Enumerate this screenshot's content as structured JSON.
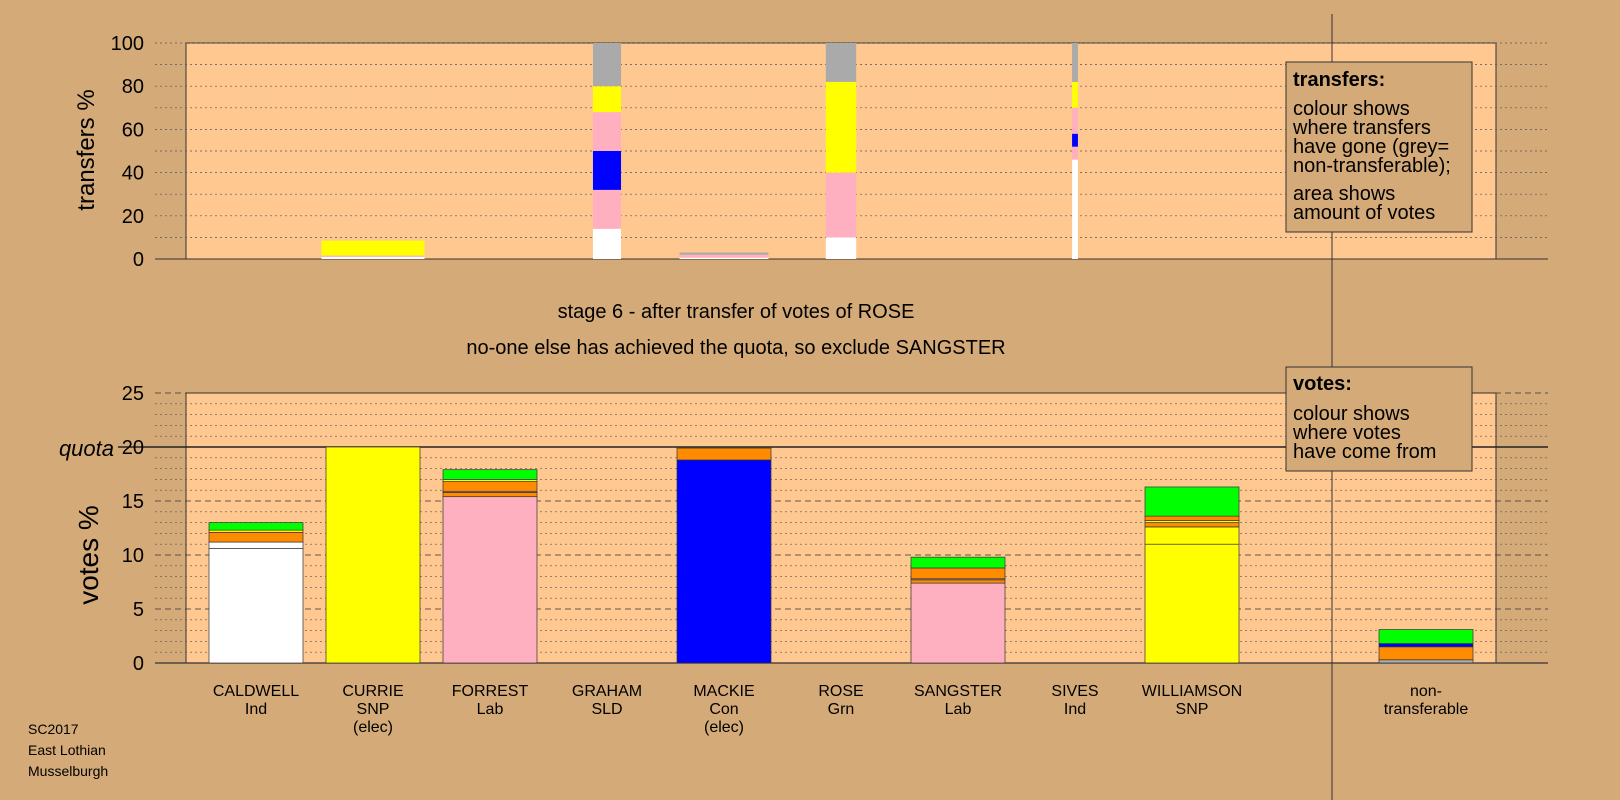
{
  "colors": {
    "page_bg": "#d4aa78",
    "plot_bg": "#ffc890",
    "non_transferable_shade": "#c9a070",
    "Ind_white": "#ffffff",
    "SNP": "#ffff00",
    "Lab": "#ffb0c0",
    "Con": "#0000ff",
    "Grn": "#00ff00",
    "SLD": "#ff8c00",
    "grey": "#aaaaaa"
  },
  "chart_data": [
    {
      "type": "bar",
      "stacked": true,
      "title": "",
      "ylabel": "transfers %",
      "ylim": [
        0,
        100
      ],
      "yticks": [
        0,
        20,
        40,
        60,
        80,
        100
      ],
      "grid": "dotted every 10",
      "categories": [
        "CALDWELL",
        "CURRIE",
        "FORREST",
        "GRAHAM",
        "MACKIE",
        "ROSE",
        "SANGSTER",
        "SIVES",
        "WILLIAMSON",
        "non-transferable"
      ],
      "note": "",
      "bars": [
        {
          "candidate": "CURRIE",
          "width_fraction": 0.88,
          "segments": [
            {
              "color": "#ffffff",
              "from": 0,
              "to": 1
            },
            {
              "color": "#ffb0c0",
              "from": 1,
              "to": 1.6
            },
            {
              "color": "#ffff00",
              "from": 1.6,
              "to": 8.5
            }
          ]
        },
        {
          "candidate": "GRAHAM",
          "width_fraction": 0.24,
          "segments": [
            {
              "color": "#ffffff",
              "from": 0,
              "to": 14
            },
            {
              "color": "#ffb0c0",
              "from": 14,
              "to": 32
            },
            {
              "color": "#0000ff",
              "from": 32,
              "to": 50
            },
            {
              "color": "#ffb0c0",
              "from": 50,
              "to": 68
            },
            {
              "color": "#ffff00",
              "from": 68,
              "to": 80
            },
            {
              "color": "#aaaaaa",
              "from": 80,
              "to": 100
            }
          ]
        },
        {
          "candidate": "MACKIE",
          "width_fraction": 0.76,
          "segments": [
            {
              "color": "#ffffff",
              "from": 0,
              "to": 0.6
            },
            {
              "color": "#ffb0c0",
              "from": 0.6,
              "to": 2
            },
            {
              "color": "#aaaaaa",
              "from": 2,
              "to": 3
            }
          ]
        },
        {
          "candidate": "ROSE",
          "width_fraction": 0.26,
          "segments": [
            {
              "color": "#ffffff",
              "from": 0,
              "to": 10
            },
            {
              "color": "#ffb0c0",
              "from": 10,
              "to": 40
            },
            {
              "color": "#ffff00",
              "from": 40,
              "to": 82
            },
            {
              "color": "#aaaaaa",
              "from": 82,
              "to": 100
            }
          ]
        },
        {
          "candidate": "SIVES",
          "width_fraction": 0.05,
          "segments": [
            {
              "color": "#ffffff",
              "from": 0,
              "to": 46
            },
            {
              "color": "#ffb0c0",
              "from": 46,
              "to": 52
            },
            {
              "color": "#0000ff",
              "from": 52,
              "to": 58
            },
            {
              "color": "#ffb0c0",
              "from": 58,
              "to": 70
            },
            {
              "color": "#ffff00",
              "from": 70,
              "to": 82
            },
            {
              "color": "#aaaaaa",
              "from": 82,
              "to": 100
            }
          ]
        }
      ]
    },
    {
      "type": "bar",
      "stacked": true,
      "ylabel": "votes %",
      "ylim": [
        0,
        25
      ],
      "yticks": [
        0,
        5,
        10,
        15,
        20,
        25
      ],
      "quota": 20,
      "quota_label": "quota",
      "grid": "dashed every 5, dotted every 1",
      "categories": [
        {
          "name": "CALDWELL",
          "party": "Ind",
          "status": ""
        },
        {
          "name": "CURRIE",
          "party": "SNP",
          "status": "(elec)"
        },
        {
          "name": "FORREST",
          "party": "Lab",
          "status": ""
        },
        {
          "name": "GRAHAM",
          "party": "SLD",
          "status": ""
        },
        {
          "name": "MACKIE",
          "party": "Con",
          "status": "(elec)"
        },
        {
          "name": "ROSE",
          "party": "Grn",
          "status": ""
        },
        {
          "name": "SANGSTER",
          "party": "Lab",
          "status": ""
        },
        {
          "name": "SIVES",
          "party": "Ind",
          "status": ""
        },
        {
          "name": "WILLIAMSON",
          "party": "SNP",
          "status": ""
        },
        {
          "name": "non-",
          "party": "transferable",
          "status": ""
        }
      ],
      "stacks": [
        {
          "candidate": "CALDWELL",
          "segments": [
            {
              "color": "#ffffff",
              "from": 0,
              "to": 10.6
            },
            {
              "color": "#ffffff",
              "from": 10.6,
              "to": 11.2
            },
            {
              "color": "#ff8c00",
              "from": 11.2,
              "to": 12.1
            },
            {
              "color": "#ffff00",
              "from": 12.1,
              "to": 12.3
            },
            {
              "color": "#00ff00",
              "from": 12.3,
              "to": 13.0
            }
          ]
        },
        {
          "candidate": "CURRIE",
          "segments": [
            {
              "color": "#ffff00",
              "from": 0,
              "to": 20.0
            }
          ]
        },
        {
          "candidate": "FORREST",
          "segments": [
            {
              "color": "#ffb0c0",
              "from": 0,
              "to": 15.4
            },
            {
              "color": "#ff8c00",
              "from": 15.4,
              "to": 15.8
            },
            {
              "color": "#ffb0c0",
              "from": 15.8,
              "to": 15.9
            },
            {
              "color": "#ff8c00",
              "from": 15.9,
              "to": 16.8
            },
            {
              "color": "#ffff00",
              "from": 16.8,
              "to": 17.0
            },
            {
              "color": "#00ff00",
              "from": 17.0,
              "to": 17.9
            }
          ]
        },
        {
          "candidate": "MACKIE",
          "segments": [
            {
              "color": "#0000ff",
              "from": 0,
              "to": 18.8
            },
            {
              "color": "#ff8c00",
              "from": 18.8,
              "to": 19.9
            }
          ]
        },
        {
          "candidate": "SANGSTER",
          "segments": [
            {
              "color": "#ffb0c0",
              "from": 0,
              "to": 7.4
            },
            {
              "color": "#ff8c00",
              "from": 7.4,
              "to": 7.7
            },
            {
              "color": "#ffb0c0",
              "from": 7.7,
              "to": 7.8
            },
            {
              "color": "#ff8c00",
              "from": 7.8,
              "to": 8.8
            },
            {
              "color": "#00ff00",
              "from": 8.8,
              "to": 9.8
            }
          ]
        },
        {
          "candidate": "WILLIAMSON",
          "segments": [
            {
              "color": "#ffff00",
              "from": 0,
              "to": 11.0
            },
            {
              "color": "#ffff00",
              "from": 11.0,
              "to": 12.6
            },
            {
              "color": "#ff8c00",
              "from": 12.6,
              "to": 13.0
            },
            {
              "color": "#ffff00",
              "from": 13.0,
              "to": 13.2
            },
            {
              "color": "#ff8c00",
              "from": 13.2,
              "to": 13.6
            },
            {
              "color": "#00ff00",
              "from": 13.6,
              "to": 16.3
            }
          ]
        },
        {
          "candidate": "non-transferable",
          "segments": [
            {
              "color": "#aaaaaa",
              "from": 0,
              "to": 0.3
            },
            {
              "color": "#ff8c00",
              "from": 0.3,
              "to": 1.5
            },
            {
              "color": "#0000ff",
              "from": 1.5,
              "to": 1.8
            },
            {
              "color": "#00ff00",
              "from": 1.8,
              "to": 3.1
            }
          ]
        }
      ]
    }
  ],
  "stage_title": "stage 6 - after transfer of votes of ROSE",
  "stage_subtitle": "no-one else has achieved the quota, so exclude SANGSTER",
  "legend_transfers": {
    "heading": "transfers:",
    "lines": [
      "colour shows",
      "where transfers",
      "have gone (grey=",
      "non-transferable);"
    ],
    "lines2": [
      "area shows",
      "amount of votes"
    ]
  },
  "legend_votes": {
    "heading": "votes:",
    "lines": [
      "colour shows",
      "where votes",
      "have come from"
    ]
  },
  "footer": [
    "SC2017",
    "East Lothian",
    "Musselburgh"
  ]
}
